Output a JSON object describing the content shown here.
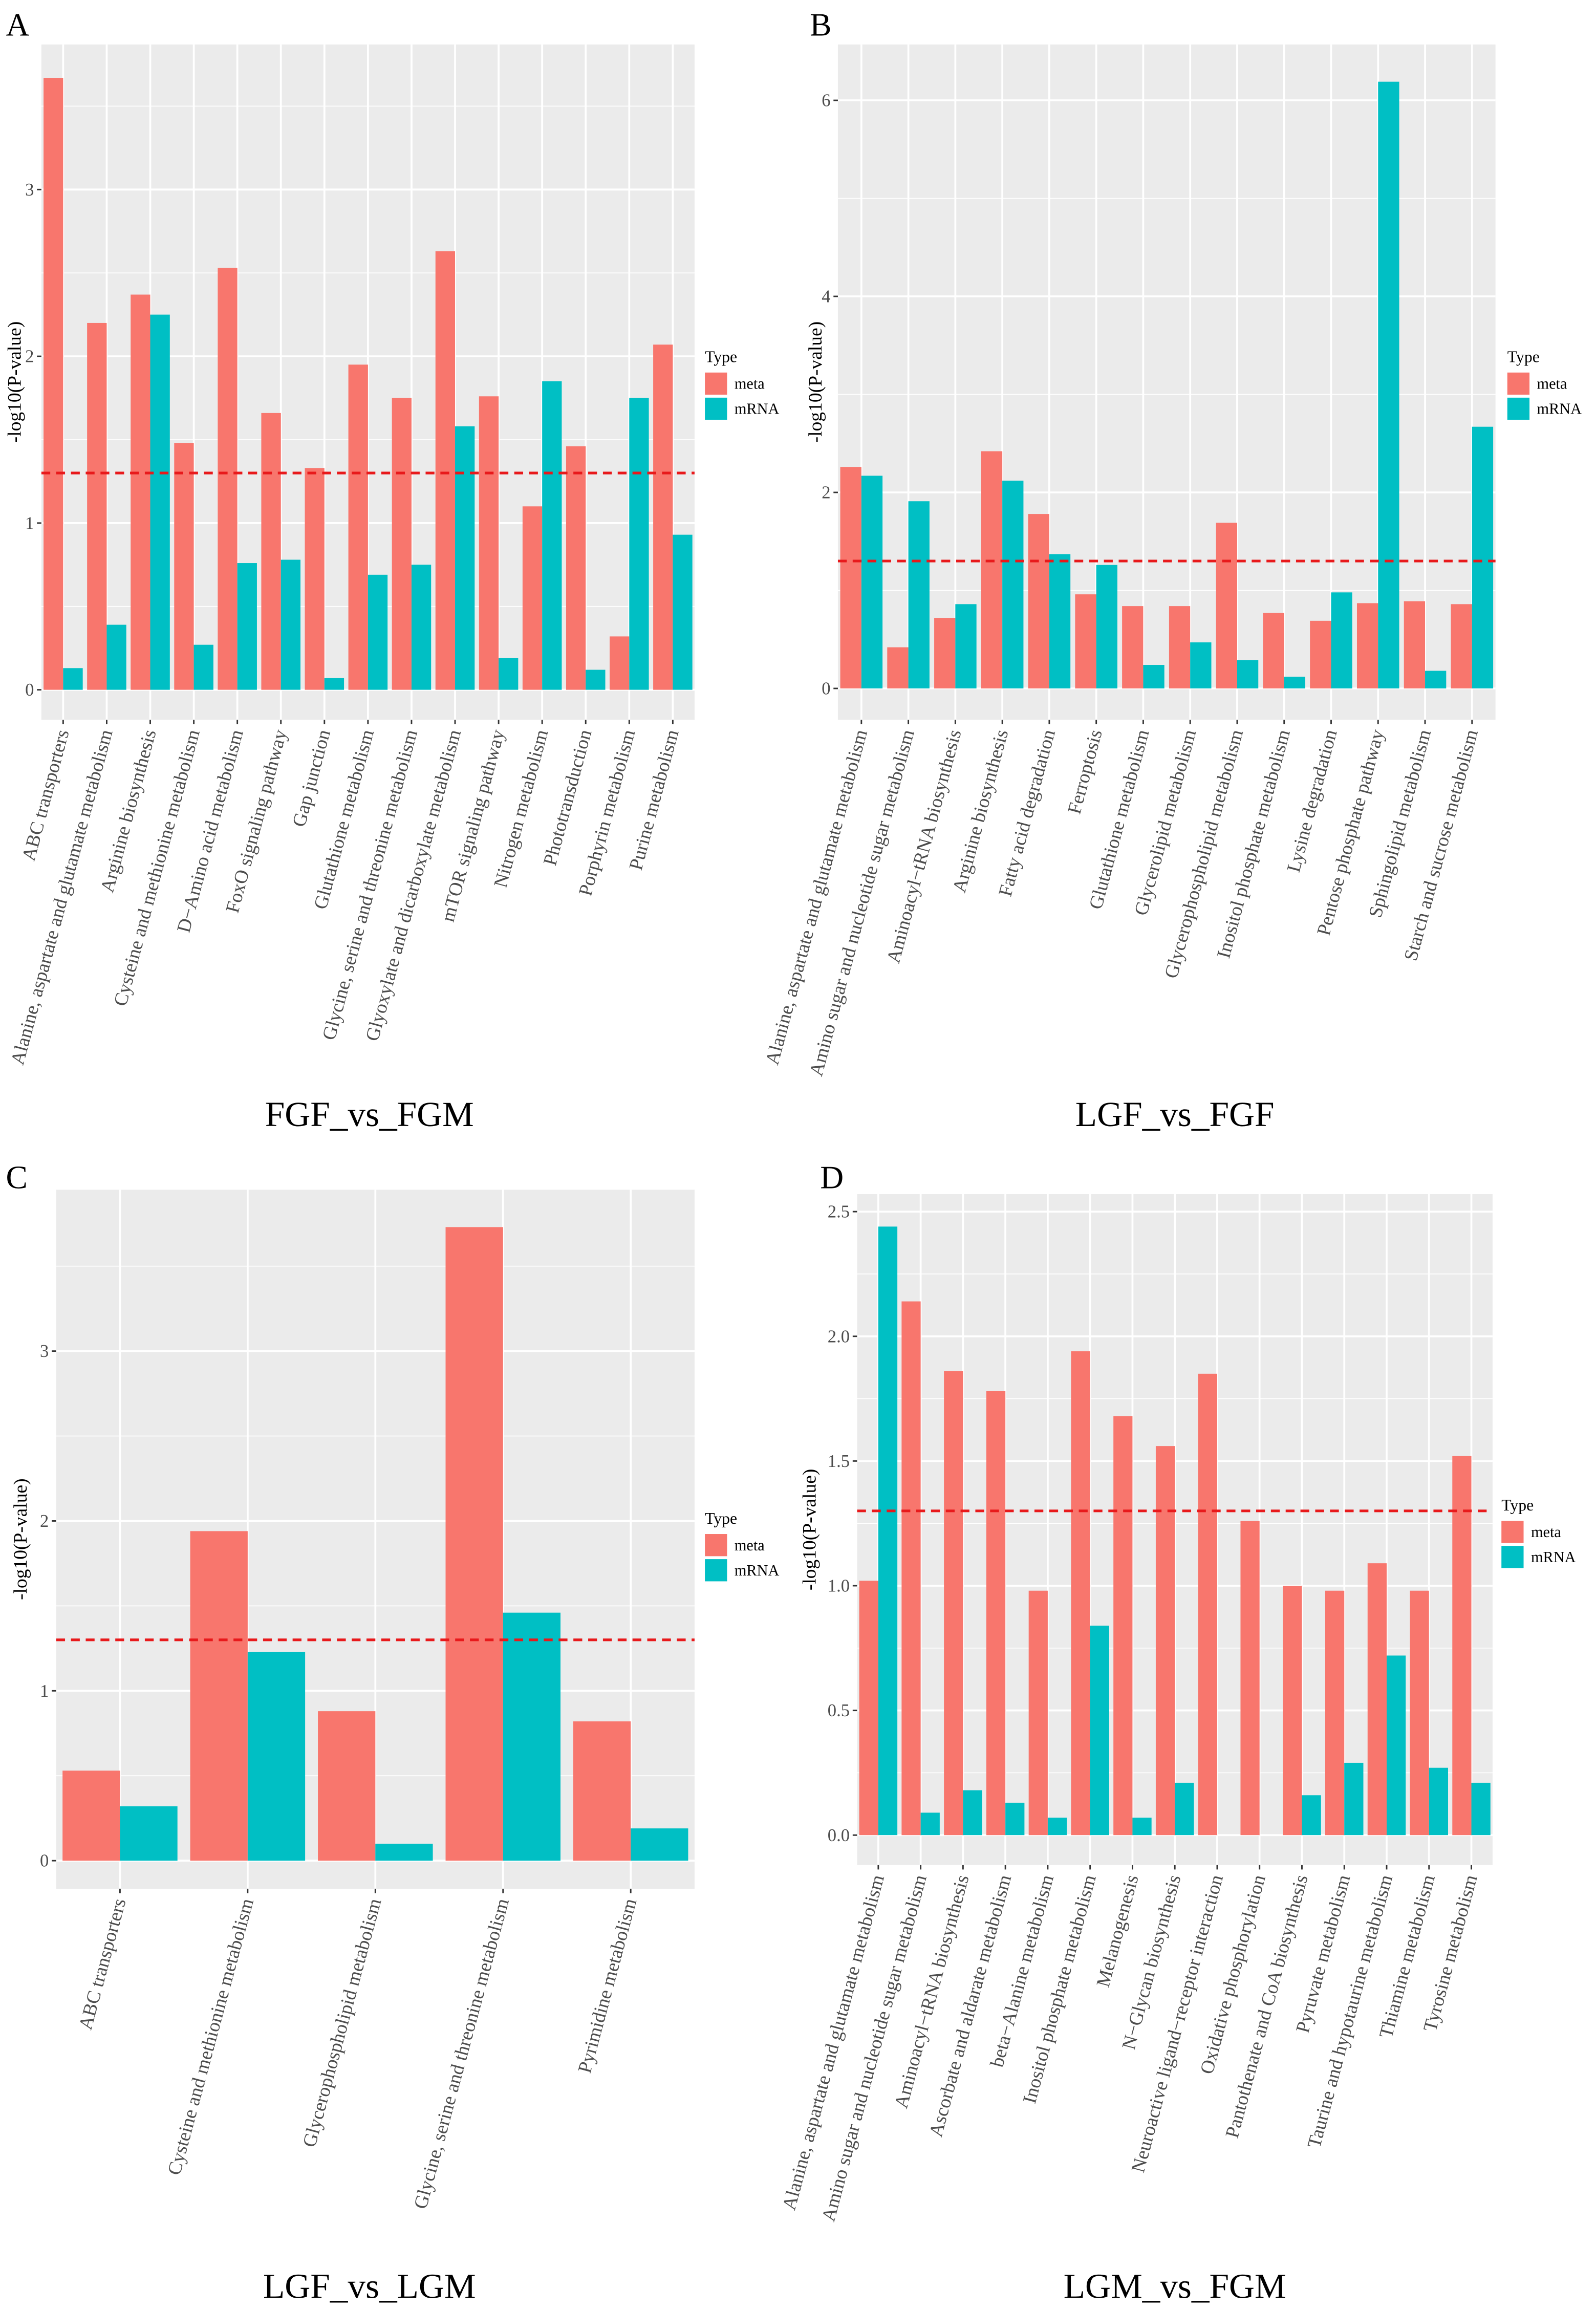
{
  "colors": {
    "meta": "#F8766D",
    "mRNA": "#00BFC4",
    "threshold": "#E8191B",
    "panel_bg": "#EBEBEB",
    "grid": "#FFFFFF"
  },
  "chart_data": [
    {
      "type": "bar",
      "panel_letter": "A",
      "title": "FGF_vs_FGM",
      "xlabel": "",
      "ylabel": "-log10(P-value)",
      "ylim": [
        -0.18,
        3.87
      ],
      "yticks": [
        0,
        1,
        2,
        3
      ],
      "ytick_labels": [
        "0",
        "1",
        "2",
        "3"
      ],
      "threshold": 1.3,
      "legend": {
        "title": "Type",
        "entries": [
          "meta",
          "mRNA"
        ],
        "placement": "right"
      },
      "categories": [
        "ABC transporters",
        "Alanine, aspartate and glutamate metabolism",
        "Arginine biosynthesis",
        "Cysteine and methionine metabolism",
        "D−Amino acid metabolism",
        "FoxO signaling pathway",
        "Gap junction",
        "Glutathione metabolism",
        "Glycine, serine and threonine metabolism",
        "Glyoxylate and dicarboxylate metabolism",
        "mTOR signaling pathway",
        "Nitrogen metabolism",
        "Phototransduction",
        "Porphyrin metabolism",
        "Purine metabolism"
      ],
      "series": [
        {
          "name": "meta",
          "values": [
            3.67,
            2.2,
            2.37,
            1.48,
            2.53,
            1.66,
            1.33,
            1.95,
            1.75,
            2.63,
            1.76,
            1.1,
            1.46,
            0.32,
            2.07
          ]
        },
        {
          "name": "mRNA",
          "values": [
            0.13,
            0.39,
            2.25,
            0.27,
            0.76,
            0.78,
            0.07,
            0.69,
            0.75,
            1.58,
            0.19,
            1.85,
            0.12,
            1.75,
            0.93
          ]
        }
      ]
    },
    {
      "type": "bar",
      "panel_letter": "B",
      "title": "LGF_vs_FGF",
      "xlabel": "",
      "ylabel": "-log10(P-value)",
      "ylim": [
        -0.32,
        6.57
      ],
      "yticks": [
        0,
        2,
        4,
        6
      ],
      "ytick_labels": [
        "0",
        "2",
        "4",
        "6"
      ],
      "threshold": 1.3,
      "legend": {
        "title": "Type",
        "entries": [
          "meta",
          "mRNA"
        ],
        "placement": "right"
      },
      "categories": [
        "Alanine, aspartate and glutamate metabolism",
        "Amino sugar and nucleotide sugar metabolism",
        "Aminoacyl−tRNA biosynthesis",
        "Arginine biosynthesis",
        "Fatty acid degradation",
        "Ferroptosis",
        "Glutathione metabolism",
        "Glycerolipid metabolism",
        "Glycerophospholipid metabolism",
        "Inositol phosphate metabolism",
        "Lysine degradation",
        "Pentose phosphate pathway",
        "Sphingolipid metabolism",
        "Starch and sucrose metabolism"
      ],
      "series": [
        {
          "name": "meta",
          "values": [
            2.26,
            0.42,
            0.72,
            2.42,
            1.78,
            0.96,
            0.84,
            0.84,
            1.69,
            0.77,
            0.69,
            0.87,
            0.89,
            0.86
          ]
        },
        {
          "name": "mRNA",
          "values": [
            2.17,
            1.91,
            0.86,
            2.12,
            1.37,
            1.26,
            0.24,
            0.47,
            0.29,
            0.12,
            0.98,
            6.19,
            0.18,
            2.67
          ]
        }
      ]
    },
    {
      "type": "bar",
      "panel_letter": "C",
      "title": "LGF_vs_LGM",
      "xlabel": "",
      "ylabel": "-log10(P-value)",
      "ylim": [
        -0.165,
        3.95
      ],
      "yticks": [
        0,
        1,
        2,
        3
      ],
      "ytick_labels": [
        "0",
        "1",
        "2",
        "3"
      ],
      "threshold": 1.3,
      "legend": {
        "title": "Type",
        "entries": [
          "meta",
          "mRNA"
        ],
        "placement": "right"
      },
      "categories": [
        "ABC transporters",
        "Cysteine and methionine metabolism",
        "Glycerophospholipid metabolism",
        "Glycine, serine and threonine metabolism",
        "Pyrimidine metabolism"
      ],
      "series": [
        {
          "name": "meta",
          "values": [
            0.53,
            1.94,
            0.88,
            3.73,
            0.82
          ]
        },
        {
          "name": "mRNA",
          "values": [
            0.32,
            1.23,
            0.1,
            1.46,
            0.19
          ]
        }
      ]
    },
    {
      "type": "bar",
      "panel_letter": "D",
      "title": "LGM_vs_FGM",
      "xlabel": "",
      "ylabel": "-log10(P-value)",
      "ylim": [
        -0.12,
        2.57
      ],
      "yticks": [
        0,
        0.5,
        1,
        1.5,
        2,
        2.5
      ],
      "ytick_labels": [
        "0.0",
        "0.5",
        "1.0",
        "1.5",
        "2.0",
        "2.5"
      ],
      "threshold": 1.3,
      "legend": {
        "title": "Type",
        "entries": [
          "meta",
          "mRNA"
        ],
        "placement": "right"
      },
      "categories": [
        "Alanine, aspartate and glutamate metabolism",
        "Amino sugar and nucleotide sugar metabolism",
        "Aminoacyl−tRNA biosynthesis",
        "Ascorbate and aldarate metabolism",
        "beta−Alanine metabolism",
        "Inositol phosphate metabolism",
        "Melanogenesis",
        "N−Glycan biosynthesis",
        "Neuroactive ligand−receptor interaction",
        "Oxidative phosphorylation",
        "Pantothenate and CoA biosynthesis",
        "Pyruvate metabolism",
        "Taurine and hypotaurine metabolism",
        "Thiamine metabolism",
        "Tyrosine metabolism"
      ],
      "series": [
        {
          "name": "meta",
          "values": [
            1.02,
            2.14,
            1.86,
            1.78,
            0.98,
            1.94,
            1.68,
            1.56,
            1.85,
            1.26,
            1.0,
            0.98,
            1.09,
            0.98,
            1.52
          ]
        },
        {
          "name": "mRNA",
          "values": [
            2.44,
            0.09,
            0.18,
            0.13,
            0.07,
            0.84,
            0.07,
            0.21,
            null,
            null,
            0.16,
            0.29,
            0.72,
            0.27,
            0.21
          ]
        }
      ]
    }
  ]
}
